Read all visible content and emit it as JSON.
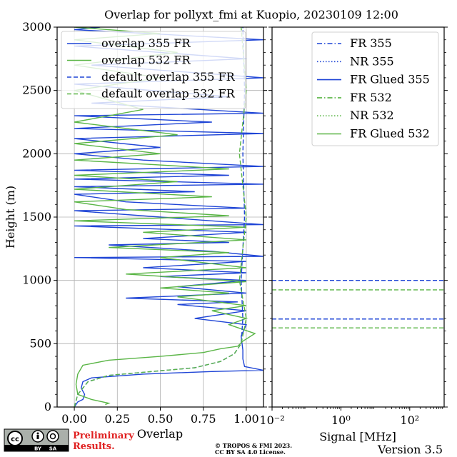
{
  "figure": {
    "title": "Overlap for pollyxt_fmi at Kuopio, 20230109 12:00",
    "version": "Version 3.5",
    "copyright_line1": "© TROPOS & FMI 2023.",
    "copyright_line2": "CC BY SA 4.0 License.",
    "preliminary_line1": "Preliminary",
    "preliminary_line2": "Results.",
    "license_badge": [
      "cc",
      "BY",
      "SA"
    ]
  },
  "colors": {
    "blue": "#1f45d6",
    "green": "#5ab546",
    "grid": "#b0b0b0"
  },
  "chart_data": [
    {
      "type": "line",
      "panel": "overlap",
      "xlabel": "Overlap",
      "ylabel": "Height (m)",
      "xlim": [
        -0.1,
        1.1
      ],
      "ylim": [
        0,
        3000
      ],
      "xticks": [
        0.0,
        0.25,
        0.5,
        0.75,
        1.0
      ],
      "xtick_labels": [
        "0.00",
        "0.25",
        "0.50",
        "0.75",
        "1.00"
      ],
      "yticks": [
        0,
        500,
        1000,
        1500,
        2000,
        2500,
        3000
      ],
      "ytick_labels": [
        "0",
        "500",
        "1000",
        "1500",
        "2000",
        "2500",
        "3000"
      ],
      "grid": true,
      "legend_position": "top",
      "series": [
        {
          "name": "overlap 355 FR",
          "color": "#1f45d6",
          "style": "solid",
          "points": [
            [
              0.0,
              0
            ],
            [
              0.02,
              40
            ],
            [
              0.05,
              60
            ],
            [
              0.06,
              100
            ],
            [
              0.04,
              150
            ],
            [
              0.05,
              200
            ],
            [
              0.1,
              230
            ],
            [
              0.4,
              260
            ],
            [
              0.8,
              280
            ],
            [
              1.1,
              290
            ],
            [
              0.99,
              320
            ],
            [
              0.98,
              380
            ],
            [
              0.98,
              450
            ],
            [
              0.97,
              560
            ],
            [
              1.0,
              650
            ],
            [
              0.7,
              700
            ],
            [
              1.0,
              760
            ],
            [
              0.6,
              810
            ],
            [
              0.95,
              830
            ],
            [
              0.3,
              860
            ],
            [
              1.0,
              900
            ],
            [
              0.6,
              950
            ],
            [
              1.0,
              1000
            ],
            [
              0.5,
              1030
            ],
            [
              1.0,
              1060
            ],
            [
              0.4,
              1100
            ],
            [
              1.0,
              1150
            ],
            [
              0.0,
              1180
            ],
            [
              1.1,
              1190
            ],
            [
              0.8,
              1230
            ],
            [
              0.2,
              1280
            ],
            [
              0.9,
              1300
            ],
            [
              0.4,
              1330
            ],
            [
              1.0,
              1380
            ],
            [
              0.0,
              1430
            ],
            [
              1.1,
              1440
            ],
            [
              0.5,
              1500
            ],
            [
              0.0,
              1550
            ],
            [
              1.0,
              1570
            ],
            [
              0.3,
              1620
            ],
            [
              0.0,
              1680
            ],
            [
              0.7,
              1700
            ],
            [
              0.0,
              1740
            ],
            [
              1.1,
              1760
            ],
            [
              0.0,
              1800
            ],
            [
              0.9,
              1830
            ],
            [
              0.0,
              1870
            ],
            [
              1.1,
              1900
            ],
            [
              0.4,
              1950
            ],
            [
              0.0,
              2000
            ],
            [
              0.5,
              2050
            ],
            [
              0.0,
              2120
            ],
            [
              1.1,
              2160
            ],
            [
              0.0,
              2200
            ],
            [
              0.8,
              2250
            ],
            [
              0.0,
              2300
            ],
            [
              1.1,
              2320
            ],
            [
              0.1,
              2400
            ],
            [
              0.9,
              2450
            ],
            [
              0.0,
              2550
            ],
            [
              1.1,
              2600
            ],
            [
              0.1,
              2700
            ],
            [
              1.0,
              2750
            ],
            [
              0.0,
              2850
            ],
            [
              1.1,
              2900
            ],
            [
              0.0,
              2980
            ],
            [
              0.15,
              3000
            ]
          ]
        },
        {
          "name": "overlap 532 FR",
          "color": "#5ab546",
          "style": "solid",
          "points": [
            [
              0.18,
              20
            ],
            [
              0.2,
              30
            ],
            [
              0.1,
              60
            ],
            [
              0.02,
              100
            ],
            [
              0.01,
              180
            ],
            [
              0.02,
              260
            ],
            [
              0.05,
              330
            ],
            [
              0.2,
              370
            ],
            [
              0.5,
              400
            ],
            [
              0.75,
              430
            ],
            [
              0.85,
              460
            ],
            [
              0.95,
              480
            ],
            [
              0.98,
              520
            ],
            [
              1.05,
              580
            ],
            [
              0.9,
              650
            ],
            [
              1.0,
              700
            ],
            [
              0.8,
              760
            ],
            [
              1.0,
              800
            ],
            [
              0.6,
              870
            ],
            [
              0.9,
              900
            ],
            [
              0.5,
              940
            ],
            [
              1.0,
              990
            ],
            [
              0.3,
              1050
            ],
            [
              1.0,
              1100
            ],
            [
              0.5,
              1180
            ],
            [
              0.9,
              1220
            ],
            [
              0.2,
              1260
            ],
            [
              1.0,
              1320
            ],
            [
              0.4,
              1380
            ],
            [
              1.0,
              1420
            ],
            [
              0.0,
              1470
            ],
            [
              0.9,
              1510
            ],
            [
              0.3,
              1560
            ],
            [
              0.0,
              1620
            ],
            [
              0.8,
              1660
            ],
            [
              0.0,
              1720
            ],
            [
              0.6,
              1780
            ],
            [
              0.0,
              1830
            ],
            [
              0.9,
              1880
            ],
            [
              0.0,
              1950
            ],
            [
              0.5,
              2000
            ],
            [
              0.0,
              2080
            ],
            [
              0.6,
              2150
            ],
            [
              0.0,
              2250
            ],
            [
              0.4,
              2350
            ],
            [
              0.0,
              2500
            ],
            [
              0.5,
              2600
            ],
            [
              0.0,
              2700
            ],
            [
              0.6,
              2800
            ],
            [
              0.0,
              2900
            ],
            [
              0.5,
              2950
            ],
            [
              0.0,
              3000
            ]
          ]
        },
        {
          "name": "default overlap 355 FR",
          "color": "#1f45d6",
          "style": "dashed",
          "points": [
            [
              0.0,
              0
            ],
            [
              0.02,
              100
            ],
            [
              0.08,
              200
            ],
            [
              0.2,
              250
            ],
            [
              0.45,
              280
            ],
            [
              0.7,
              310
            ],
            [
              0.85,
              360
            ],
            [
              0.93,
              420
            ],
            [
              0.97,
              500
            ],
            [
              0.98,
              700
            ],
            [
              0.97,
              1000
            ],
            [
              0.99,
              1500
            ],
            [
              0.98,
              2000
            ],
            [
              0.99,
              2500
            ],
            [
              0.98,
              3000
            ]
          ]
        },
        {
          "name": "default overlap 532 FR",
          "color": "#5ab546",
          "style": "dashed",
          "points": [
            [
              0.0,
              0
            ],
            [
              0.02,
              100
            ],
            [
              0.08,
              200
            ],
            [
              0.2,
              250
            ],
            [
              0.45,
              280
            ],
            [
              0.7,
              310
            ],
            [
              0.85,
              360
            ],
            [
              0.93,
              420
            ],
            [
              0.97,
              500
            ],
            [
              1.0,
              700
            ],
            [
              0.96,
              1000
            ],
            [
              1.0,
              1500
            ],
            [
              0.96,
              2000
            ],
            [
              1.0,
              2500
            ],
            [
              0.97,
              3000
            ]
          ]
        }
      ]
    },
    {
      "type": "line",
      "panel": "signal",
      "xlabel": "Signal [MHz]",
      "xscale": "log",
      "xlim": [
        0.01,
        1000
      ],
      "ylim": [
        0,
        3000
      ],
      "xticks": [
        0.01,
        1,
        100
      ],
      "xtick_labels": [
        "10⁻²",
        "10⁰",
        "10²"
      ],
      "legend_position": "top-right",
      "series": [
        {
          "name": "FR 355",
          "color": "#1f45d6",
          "style": "dashdot",
          "points": []
        },
        {
          "name": "NR 355",
          "color": "#1f45d6",
          "style": "dotted",
          "points": []
        },
        {
          "name": "FR Glued 355",
          "color": "#1f45d6",
          "style": "solid",
          "points": []
        },
        {
          "name": "FR 532",
          "color": "#5ab546",
          "style": "dashdot",
          "points": []
        },
        {
          "name": "NR 532",
          "color": "#5ab546",
          "style": "dotted",
          "points": []
        },
        {
          "name": "FR Glued 532",
          "color": "#5ab546",
          "style": "solid",
          "points": []
        }
      ],
      "reference_lines": [
        {
          "height": 1000,
          "color": "#1f45d6",
          "style": "dashed"
        },
        {
          "height": 925,
          "color": "#5ab546",
          "style": "dashed"
        },
        {
          "height": 695,
          "color": "#1f45d6",
          "style": "dashed"
        },
        {
          "height": 625,
          "color": "#5ab546",
          "style": "dashed"
        }
      ]
    }
  ]
}
